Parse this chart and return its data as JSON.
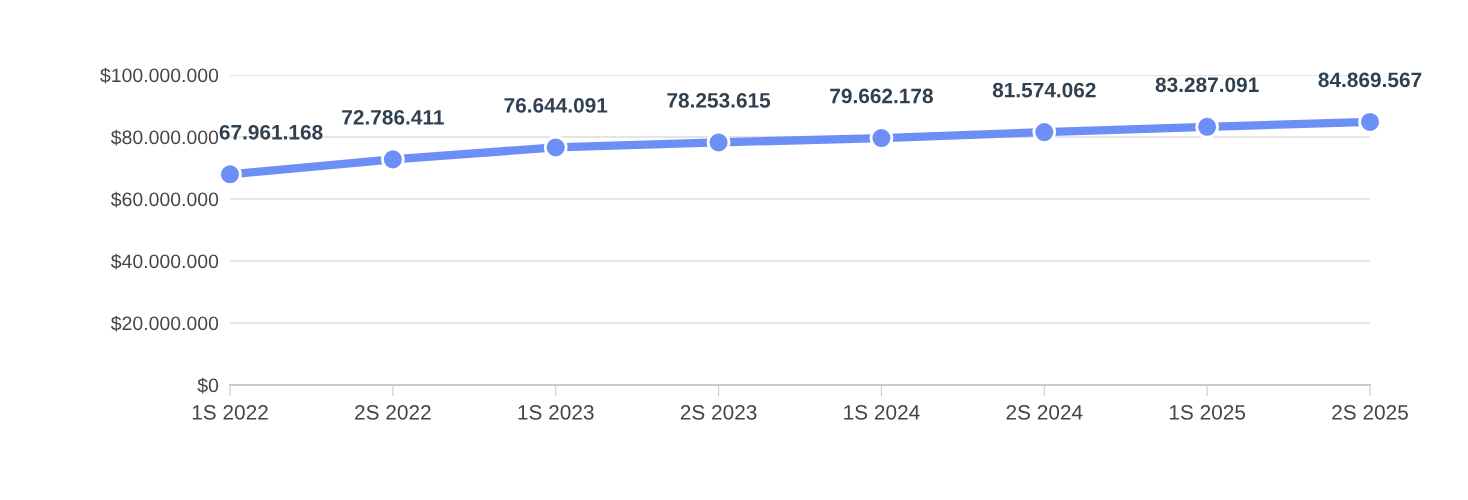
{
  "chart_data": {
    "type": "line",
    "categories": [
      "1S 2022",
      "2S 2022",
      "1S 2023",
      "2S 2023",
      "1S 2024",
      "2S 2024",
      "1S 2025",
      "2S 2025"
    ],
    "series": [
      {
        "color": "#6b8ff7",
        "values": [
          67961168,
          72786411,
          76644091,
          78253615,
          79662178,
          81574062,
          83287091,
          84869567
        ],
        "value_labels": [
          "67.961.168",
          "72.786.411",
          "76.644.091",
          "78.253.615",
          "79.662.178",
          "81.574.062",
          "83.287.091",
          "84.869.567"
        ]
      }
    ],
    "ylim": [
      0,
      100000000
    ],
    "yticks": [
      {
        "value": 0,
        "label": "$0"
      },
      {
        "value": 20000000,
        "label": "$20.000.000"
      },
      {
        "value": 40000000,
        "label": "$40.000.000"
      },
      {
        "value": 60000000,
        "label": "$60.000.000"
      },
      {
        "value": 80000000,
        "label": "$80.000.000"
      },
      {
        "value": 100000000,
        "label": "$100.000.000"
      }
    ],
    "grid": "y",
    "marker": "circle",
    "line_style": "solid"
  }
}
